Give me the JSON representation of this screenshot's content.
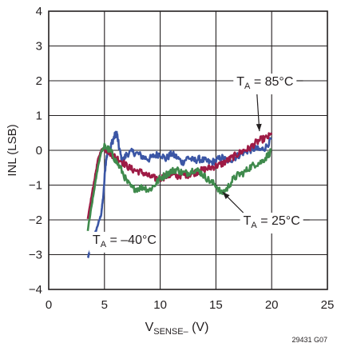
{
  "chart_data": {
    "type": "line",
    "xlabel": {
      "main": "V",
      "sub": "SENSE–",
      "unit": " (V)"
    },
    "ylabel": "INL (LSB)",
    "xlim": [
      0,
      25
    ],
    "ylim": [
      -4,
      4
    ],
    "x_ticks": [
      0,
      5,
      10,
      15,
      20,
      25
    ],
    "y_ticks": [
      -4,
      -3,
      -2,
      -1,
      0,
      1,
      2,
      3,
      4
    ],
    "grid": true,
    "footnote": "29431 G07",
    "annotations": [
      {
        "prefix": "T",
        "sub": "A",
        "text": " = 85°C",
        "target": [
          18.9,
          0.55
        ],
        "label_at": [
          19.4,
          2.0
        ]
      },
      {
        "prefix": "T",
        "sub": "A",
        "text": " = 25°C",
        "target": [
          15.6,
          -1.2
        ],
        "label_at": [
          20.0,
          -2.0
        ]
      },
      {
        "prefix": "T",
        "sub": "A",
        "text": " = –40°C",
        "target": null,
        "label_at": [
          6.8,
          -2.55
        ]
      }
    ],
    "series": [
      {
        "color": "#3b56a5",
        "annotation": "T_A = –40°C",
        "x": [
          3.5,
          3.8,
          4.1,
          4.4,
          4.7,
          4.9,
          5.1,
          5.3,
          5.5,
          5.7,
          5.9,
          6.1,
          6.3,
          6.6,
          7.0,
          7.5,
          8.0,
          8.5,
          9.0,
          9.5,
          10.0,
          10.5,
          11.0,
          11.5,
          12.0,
          12.5,
          13.0,
          13.5,
          14.0,
          14.5,
          15.0,
          15.5,
          16.0,
          16.5,
          17.0,
          17.5,
          18.0,
          18.5,
          19.0,
          19.5,
          20.0
        ],
        "y": [
          -3.1,
          -2.8,
          -2.45,
          -2.15,
          -1.85,
          -1.3,
          -0.4,
          0.0,
          0.05,
          0.25,
          0.4,
          0.5,
          0.1,
          -0.35,
          -0.1,
          -0.05,
          -0.1,
          -0.2,
          -0.25,
          -0.15,
          -0.1,
          -0.25,
          -0.1,
          -0.2,
          -0.35,
          -0.2,
          -0.3,
          -0.25,
          -0.3,
          -0.35,
          -0.3,
          -0.2,
          -0.3,
          -0.25,
          -0.15,
          -0.05,
          0.0,
          0.05,
          0.0,
          0.1,
          0.35
        ]
      },
      {
        "color": "#9e1b45",
        "annotation": "T_A = 85°C",
        "x": [
          3.5,
          3.8,
          4.1,
          4.4,
          4.7,
          5.0,
          5.3,
          5.6,
          6.0,
          6.5,
          7.0,
          7.5,
          8.0,
          8.5,
          9.0,
          9.5,
          10.0,
          10.5,
          11.0,
          11.5,
          12.0,
          12.5,
          13.0,
          13.5,
          14.0,
          14.5,
          15.0,
          15.5,
          16.0,
          16.5,
          17.0,
          17.5,
          18.0,
          18.5,
          19.0,
          19.5,
          20.0
        ],
        "y": [
          -2.0,
          -1.4,
          -0.85,
          -0.3,
          0.0,
          0.05,
          0.0,
          -0.1,
          -0.2,
          -0.3,
          -0.45,
          -0.55,
          -0.6,
          -0.65,
          -0.75,
          -0.8,
          -0.8,
          -0.75,
          -0.7,
          -0.75,
          -0.7,
          -0.7,
          -0.65,
          -0.6,
          -0.55,
          -0.5,
          -0.45,
          -0.4,
          -0.3,
          -0.2,
          -0.1,
          0.0,
          0.05,
          0.2,
          0.3,
          0.35,
          0.45
        ]
      },
      {
        "color": "#3f8a4c",
        "annotation": "T_A = 25°C",
        "x": [
          3.5,
          3.8,
          4.1,
          4.4,
          4.7,
          5.0,
          5.3,
          5.6,
          6.0,
          6.5,
          7.0,
          7.5,
          8.0,
          8.5,
          9.0,
          9.5,
          10.0,
          10.5,
          11.0,
          11.5,
          12.0,
          12.5,
          13.0,
          13.5,
          14.0,
          14.5,
          15.0,
          15.5,
          16.0,
          16.5,
          17.0,
          17.5,
          18.0,
          18.5,
          19.0,
          19.5,
          20.0
        ],
        "y": [
          -2.3,
          -1.7,
          -1.1,
          -0.5,
          -0.05,
          0.1,
          0.05,
          -0.05,
          -0.3,
          -0.55,
          -0.9,
          -1.1,
          -1.1,
          -1.05,
          -1.15,
          -1.0,
          -0.8,
          -0.7,
          -0.6,
          -0.55,
          -0.65,
          -0.65,
          -0.55,
          -0.6,
          -0.75,
          -0.9,
          -1.0,
          -1.25,
          -1.1,
          -0.85,
          -0.7,
          -0.65,
          -0.5,
          -0.4,
          -0.35,
          -0.2,
          0.0
        ]
      }
    ]
  }
}
